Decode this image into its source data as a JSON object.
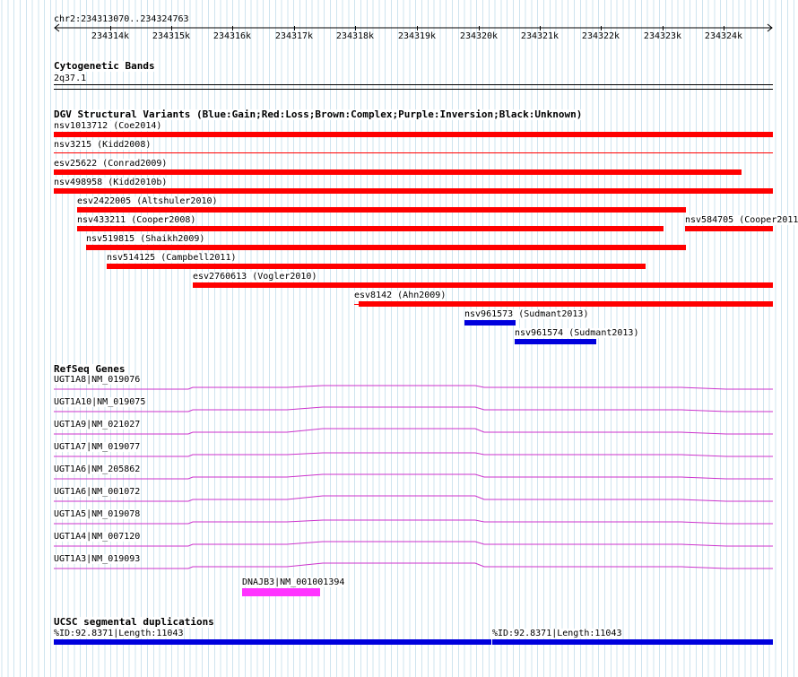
{
  "ruler": {
    "region": "chr2:234313070..234324763",
    "ticks": [
      "234314k",
      "234315k",
      "234316k",
      "234317k",
      "234318k",
      "234319k",
      "234320k",
      "234321k",
      "234322k",
      "234323k",
      "234324k"
    ]
  },
  "tracks": {
    "cytobands": {
      "title": "Cytogenetic Bands",
      "band": "2q37.1"
    },
    "dgv": {
      "title": "DGV Structural Variants (Blue:Gain;Red:Loss;Brown:Complex;Purple:Inversion;Black:Unknown)",
      "colors": {
        "loss": "#ff0000",
        "gain": "#0000dd"
      },
      "features": [
        {
          "label": "nsv1013712 (Coe2014)",
          "type": "loss"
        },
        {
          "label": "nsv3215 (Kidd2008)",
          "type": "loss"
        },
        {
          "label": "esv25622 (Conrad2009)",
          "type": "loss"
        },
        {
          "label": "nsv498958 (Kidd2010b)",
          "type": "loss"
        },
        {
          "label": "esv2422005 (Altshuler2010)",
          "type": "loss"
        },
        {
          "label": "nsv433211 (Cooper2008)",
          "type": "loss"
        },
        {
          "label": "nsv584705 (Cooper2011",
          "type": "loss"
        },
        {
          "label": "nsv519815 (Shaikh2009)",
          "type": "loss"
        },
        {
          "label": "nsv514125 (Campbell2011)",
          "type": "loss"
        },
        {
          "label": "esv2760613 (Vogler2010)",
          "type": "loss"
        },
        {
          "label": "esv8142 (Ahn2009)",
          "type": "loss"
        },
        {
          "label": "nsv961573 (Sudmant2013)",
          "type": "gain"
        },
        {
          "label": "nsv961574 (Sudmant2013)",
          "type": "gain"
        }
      ]
    },
    "refseq": {
      "title": "RefSeq Genes",
      "color": "#cc33cc",
      "genes": [
        "UGT1A8|NM_019076",
        "UGT1A10|NM_019075",
        "UGT1A9|NM_021027",
        "UGT1A7|NM_019077",
        "UGT1A6|NM_205862",
        "UGT1A6|NM_001072",
        "UGT1A5|NM_019078",
        "UGT1A4|NM_007120",
        "UGT1A3|NM_019093",
        "DNAJB3|NM_001001394"
      ]
    },
    "segdups": {
      "title": "UCSC segmental duplications",
      "color": "#0000dd",
      "features": [
        "%ID:92.8371|Length:11043",
        "%ID:92.8371|Length:11043"
      ]
    }
  }
}
